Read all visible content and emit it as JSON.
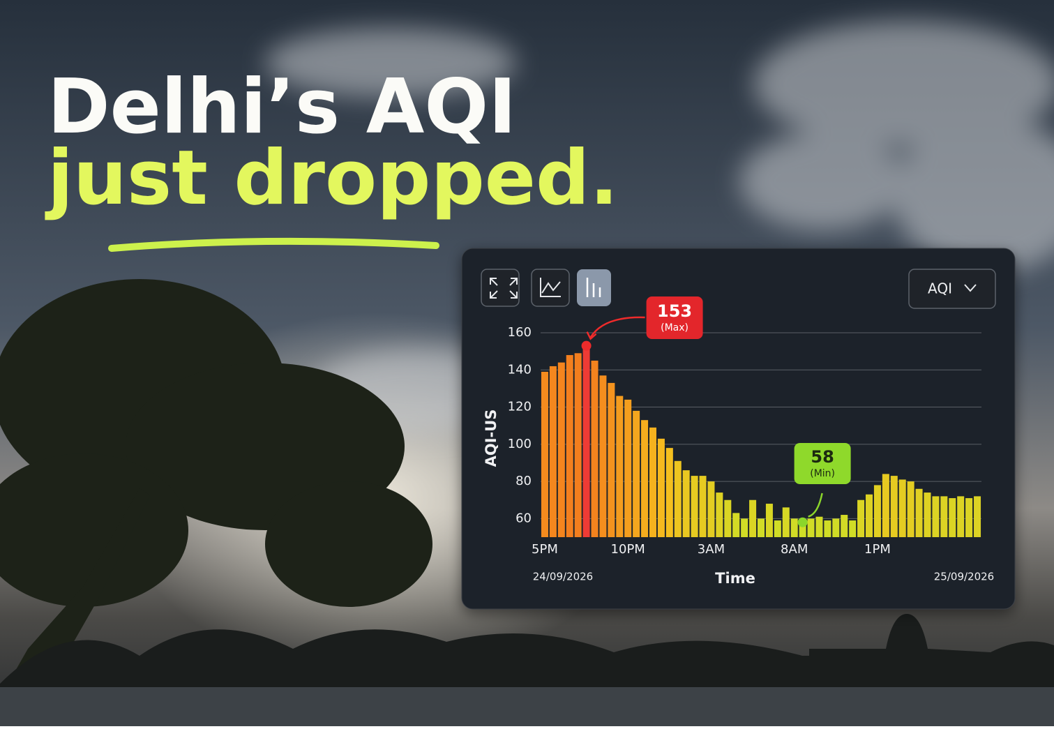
{
  "headline": {
    "line1": "Delhi’s AQI",
    "line2": "just dropped."
  },
  "controls": {
    "dropdown": "AQI"
  },
  "chart_data": {
    "type": "bar",
    "y_label": "AQI-US",
    "x_label": "Time",
    "start_date": "24/09/2026",
    "end_date": "25/09/2026",
    "max_label": "(Max)",
    "min_label": "(Min)",
    "categories": [
      "5PM",
      null,
      null,
      null,
      null,
      null,
      null,
      null,
      null,
      null,
      "10PM",
      null,
      null,
      null,
      null,
      null,
      null,
      null,
      null,
      null,
      "3AM",
      null,
      null,
      null,
      null,
      null,
      null,
      null,
      null,
      null,
      "8AM",
      null,
      null,
      null,
      null,
      null,
      null,
      null,
      null,
      null,
      "1PM",
      null,
      null,
      null,
      null,
      null,
      null,
      null,
      null,
      null,
      null,
      null,
      null
    ],
    "values": [
      139,
      142,
      144,
      148,
      149,
      153,
      145,
      137,
      133,
      126,
      124,
      118,
      113,
      109,
      103,
      98,
      91,
      86,
      83,
      83,
      80,
      74,
      70,
      63,
      60,
      70,
      60,
      68,
      59,
      66,
      60,
      58,
      60,
      61,
      59,
      60,
      62,
      59,
      70,
      73,
      78,
      84,
      83,
      81,
      80,
      76,
      74,
      72,
      72,
      71,
      72,
      71,
      72
    ],
    "ylim": [
      50,
      160
    ],
    "yticks": [
      60,
      80,
      100,
      120,
      140,
      160
    ],
    "grid": true
  }
}
